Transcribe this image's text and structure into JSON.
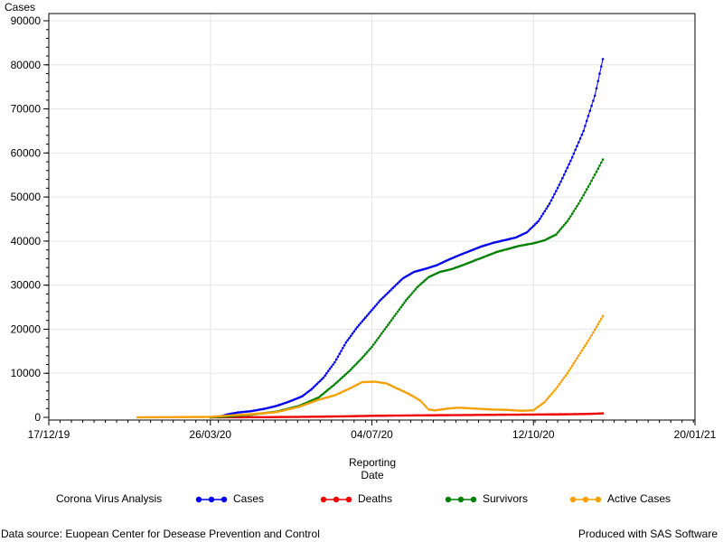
{
  "chart_data": {
    "type": "line",
    "ylabel": "Cases",
    "xlabel_lines": [
      "Reporting",
      "Date"
    ],
    "ylim": [
      0,
      90000
    ],
    "yticks": [
      0,
      10000,
      20000,
      30000,
      40000,
      50000,
      60000,
      70000,
      80000,
      90000
    ],
    "xlim": [
      "2019-12-17",
      "2021-01-20"
    ],
    "xticks": [
      "2019-12-17",
      "2020-03-26",
      "2020-07-04",
      "2020-10-12",
      "2021-01-20"
    ],
    "xtick_labels": [
      "17/12/19",
      "26/03/20",
      "04/07/20",
      "12/10/20",
      "20/01/21"
    ],
    "grid": true,
    "legend_position": "bottom",
    "legend_title": "Corona Virus Analysis",
    "series": [
      {
        "name": "Cases",
        "color": "#0000ee",
        "points": [
          [
            "2020-03-26",
            0
          ],
          [
            "2020-04-01",
            200
          ],
          [
            "2020-04-06",
            700
          ],
          [
            "2020-04-12",
            1100
          ],
          [
            "2020-04-20",
            1400
          ],
          [
            "2020-04-28",
            1900
          ],
          [
            "2020-05-06",
            2600
          ],
          [
            "2020-05-14",
            3600
          ],
          [
            "2020-05-22",
            4800
          ],
          [
            "2020-05-28",
            6500
          ],
          [
            "2020-06-04",
            9000
          ],
          [
            "2020-06-11",
            12500
          ],
          [
            "2020-06-18",
            17000
          ],
          [
            "2020-06-25",
            20500
          ],
          [
            "2020-07-02",
            23500
          ],
          [
            "2020-07-09",
            26500
          ],
          [
            "2020-07-16",
            29000
          ],
          [
            "2020-07-23",
            31500
          ],
          [
            "2020-07-30",
            33000
          ],
          [
            "2020-08-06",
            33700
          ],
          [
            "2020-08-13",
            34500
          ],
          [
            "2020-08-20",
            35700
          ],
          [
            "2020-08-27",
            36800
          ],
          [
            "2020-09-03",
            37800
          ],
          [
            "2020-09-10",
            38800
          ],
          [
            "2020-09-17",
            39600
          ],
          [
            "2020-09-24",
            40200
          ],
          [
            "2020-10-01",
            40800
          ],
          [
            "2020-10-08",
            42000
          ],
          [
            "2020-10-15",
            44500
          ],
          [
            "2020-10-22",
            48500
          ],
          [
            "2020-10-29",
            53500
          ],
          [
            "2020-11-05",
            59000
          ],
          [
            "2020-11-12",
            65000
          ],
          [
            "2020-11-19",
            73000
          ],
          [
            "2020-11-24",
            81300
          ]
        ]
      },
      {
        "name": "Deaths",
        "color": "#ee0000",
        "points": [
          [
            "2020-03-26",
            0
          ],
          [
            "2020-05-01",
            50
          ],
          [
            "2020-06-01",
            150
          ],
          [
            "2020-06-20",
            250
          ],
          [
            "2020-07-04",
            350
          ],
          [
            "2020-08-01",
            450
          ],
          [
            "2020-09-01",
            530
          ],
          [
            "2020-10-01",
            620
          ],
          [
            "2020-10-15",
            650
          ],
          [
            "2020-11-01",
            700
          ],
          [
            "2020-11-15",
            780
          ],
          [
            "2020-11-24",
            900
          ]
        ]
      },
      {
        "name": "Survivors",
        "color": "#008000",
        "points": [
          [
            "2020-03-26",
            0
          ],
          [
            "2020-04-06",
            200
          ],
          [
            "2020-04-20",
            600
          ],
          [
            "2020-05-06",
            1300
          ],
          [
            "2020-05-20",
            2600
          ],
          [
            "2020-06-01",
            4500
          ],
          [
            "2020-06-11",
            7500
          ],
          [
            "2020-06-20",
            10500
          ],
          [
            "2020-06-28",
            13500
          ],
          [
            "2020-07-04",
            16000
          ],
          [
            "2020-07-11",
            19500
          ],
          [
            "2020-07-18",
            23000
          ],
          [
            "2020-07-25",
            26500
          ],
          [
            "2020-08-01",
            29500
          ],
          [
            "2020-08-08",
            31800
          ],
          [
            "2020-08-15",
            33000
          ],
          [
            "2020-08-22",
            33600
          ],
          [
            "2020-08-29",
            34500
          ],
          [
            "2020-09-05",
            35500
          ],
          [
            "2020-09-12",
            36500
          ],
          [
            "2020-09-19",
            37500
          ],
          [
            "2020-09-26",
            38200
          ],
          [
            "2020-10-03",
            38900
          ],
          [
            "2020-10-12",
            39500
          ],
          [
            "2020-10-19",
            40200
          ],
          [
            "2020-10-26",
            41500
          ],
          [
            "2020-11-02",
            44500
          ],
          [
            "2020-11-09",
            48500
          ],
          [
            "2020-11-16",
            53000
          ],
          [
            "2020-11-24",
            58500
          ]
        ]
      },
      {
        "name": "Active Cases",
        "color": "#f5a000",
        "points": [
          [
            "2020-02-10",
            0
          ],
          [
            "2020-03-26",
            100
          ],
          [
            "2020-04-06",
            400
          ],
          [
            "2020-04-20",
            700
          ],
          [
            "2020-05-06",
            1200
          ],
          [
            "2020-05-20",
            2400
          ],
          [
            "2020-06-01",
            4000
          ],
          [
            "2020-06-11",
            5000
          ],
          [
            "2020-06-20",
            6500
          ],
          [
            "2020-06-28",
            8000
          ],
          [
            "2020-07-06",
            8100
          ],
          [
            "2020-07-13",
            7700
          ],
          [
            "2020-07-20",
            6500
          ],
          [
            "2020-07-27",
            5300
          ],
          [
            "2020-08-03",
            3800
          ],
          [
            "2020-08-08",
            1800
          ],
          [
            "2020-08-12",
            1600
          ],
          [
            "2020-08-20",
            2000
          ],
          [
            "2020-08-27",
            2200
          ],
          [
            "2020-09-05",
            2000
          ],
          [
            "2020-09-15",
            1800
          ],
          [
            "2020-09-25",
            1700
          ],
          [
            "2020-10-05",
            1500
          ],
          [
            "2020-10-12",
            1600
          ],
          [
            "2020-10-19",
            3500
          ],
          [
            "2020-10-26",
            6500
          ],
          [
            "2020-11-02",
            10000
          ],
          [
            "2020-11-09",
            14000
          ],
          [
            "2020-11-16",
            18000
          ],
          [
            "2020-11-24",
            23000
          ]
        ]
      }
    ]
  },
  "footer": {
    "left": "Data source: Euopean Center for Desease Prevention and Control",
    "right": "Produced with SAS Software"
  }
}
